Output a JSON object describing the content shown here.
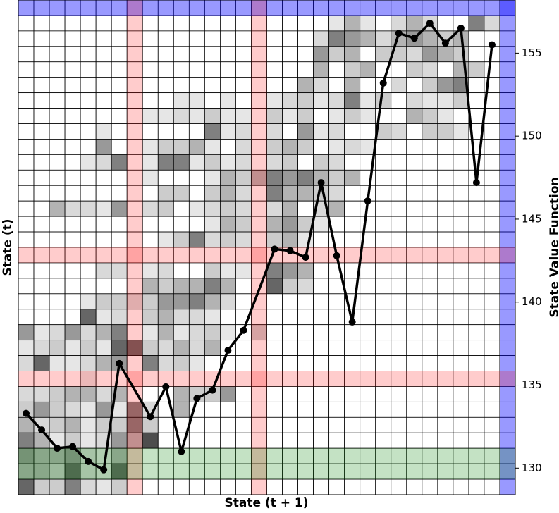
{
  "chart_data": {
    "type": "heatmap",
    "x_label": "State (t + 1)",
    "y_label": "State (t)",
    "y2_label": "State Value Function",
    "xlim": [
      -0.5,
      31.5
    ],
    "colorscale": [
      "#ffffff",
      "#000000"
    ],
    "zlim": [
      0,
      1
    ],
    "matrix": [
      [
        0,
        0,
        0,
        0,
        0,
        0,
        0,
        0,
        0,
        0,
        0,
        0,
        0,
        0,
        0,
        0,
        0,
        0,
        0,
        0,
        0,
        0,
        0,
        0,
        0,
        0,
        0,
        0,
        0,
        0,
        0,
        0
      ],
      [
        0,
        0,
        0,
        0,
        0,
        0,
        0,
        0,
        0,
        0,
        0,
        0,
        0,
        0,
        0,
        0,
        0,
        0,
        0,
        0,
        0.1,
        0.3,
        0.1,
        0,
        0.15,
        0.3,
        0.15,
        0,
        0,
        0.5,
        0.15,
        0
      ],
      [
        0,
        0,
        0,
        0,
        0,
        0,
        0,
        0,
        0,
        0,
        0,
        0,
        0,
        0,
        0,
        0,
        0,
        0,
        0,
        0.15,
        0.5,
        0.4,
        0.3,
        0.15,
        0.3,
        0.4,
        0.3,
        0.2,
        0.3,
        0,
        0,
        0
      ],
      [
        0,
        0,
        0,
        0,
        0,
        0,
        0,
        0,
        0,
        0,
        0,
        0,
        0,
        0,
        0,
        0,
        0,
        0,
        0,
        0.4,
        0.2,
        0.3,
        0,
        0.2,
        0.2,
        0.15,
        0.4,
        0.3,
        0.2,
        0,
        0,
        0
      ],
      [
        0,
        0,
        0,
        0,
        0,
        0,
        0,
        0,
        0,
        0,
        0,
        0,
        0,
        0,
        0,
        0,
        0,
        0,
        0,
        0.3,
        0,
        0.2,
        0.3,
        0,
        0,
        0.2,
        0.15,
        0,
        0.3,
        0.2,
        0,
        0
      ],
      [
        0,
        0,
        0,
        0,
        0,
        0,
        0,
        0,
        0,
        0,
        0,
        0,
        0,
        0,
        0,
        0,
        0,
        0,
        0.3,
        0.15,
        0,
        0.3,
        0,
        0,
        0.15,
        0,
        0.2,
        0.4,
        0.5,
        0,
        0,
        0
      ],
      [
        0,
        0,
        0,
        0,
        0,
        0,
        0,
        0,
        0,
        0,
        0.1,
        0.1,
        0,
        0.1,
        0,
        0,
        0.1,
        0.15,
        0.2,
        0.1,
        0.15,
        0.5,
        0.1,
        0.2,
        0,
        0.15,
        0.1,
        0.1,
        0.2,
        0,
        0,
        0
      ],
      [
        0,
        0,
        0,
        0,
        0,
        0,
        0,
        0,
        0.1,
        0.1,
        0.15,
        0.1,
        0.2,
        0.1,
        0.1,
        0,
        0.2,
        0.1,
        0.2,
        0,
        0.1,
        0.2,
        0.1,
        0,
        0,
        0.3,
        0.2,
        0.1,
        0,
        0,
        0,
        0
      ],
      [
        0,
        0,
        0,
        0,
        0,
        0.1,
        0,
        0,
        0,
        0,
        0,
        0,
        0.5,
        0.1,
        0.15,
        0,
        0.15,
        0,
        0.4,
        0.1,
        0.15,
        0,
        0,
        0.2,
        0.15,
        0,
        0.2,
        0.2,
        0.1,
        0,
        0,
        0
      ],
      [
        0,
        0,
        0,
        0,
        0,
        0.4,
        0,
        0,
        0.1,
        0.2,
        0.2,
        0.3,
        0.1,
        0,
        0.15,
        0,
        0.2,
        0.3,
        0.2,
        0,
        0.1,
        0.15,
        0.1,
        0,
        0,
        0,
        0,
        0,
        0,
        0,
        0,
        0
      ],
      [
        0,
        0,
        0,
        0,
        0.1,
        0.15,
        0.5,
        0,
        0.1,
        0.5,
        0.5,
        0.1,
        0.2,
        0.1,
        0.15,
        0,
        0.15,
        0.2,
        0,
        0.2,
        0.15,
        0,
        0,
        0,
        0,
        0,
        0,
        0,
        0,
        0,
        0,
        0
      ],
      [
        0,
        0,
        0,
        0,
        0,
        0,
        0,
        0,
        0.1,
        0,
        0,
        0,
        0.1,
        0.3,
        0.2,
        0.3,
        0.5,
        0.4,
        0.5,
        0.3,
        0.2,
        0.3,
        0,
        0,
        0,
        0,
        0,
        0,
        0,
        0,
        0,
        0
      ],
      [
        0,
        0,
        0,
        0,
        0,
        0,
        0,
        0,
        0,
        0.2,
        0.2,
        0,
        0.2,
        0.3,
        0.15,
        0,
        0.5,
        0.3,
        0.3,
        0.2,
        0.15,
        0,
        0,
        0,
        0,
        0,
        0,
        0,
        0,
        0,
        0,
        0
      ],
      [
        0,
        0,
        0.3,
        0.15,
        0.15,
        0.1,
        0.4,
        0,
        0.15,
        0.2,
        0,
        0.1,
        0.15,
        0.2,
        0.15,
        0,
        0.15,
        0.3,
        0,
        0.15,
        0.3,
        0,
        0,
        0,
        0,
        0,
        0,
        0,
        0,
        0,
        0,
        0
      ],
      [
        0,
        0,
        0,
        0,
        0,
        0,
        0,
        0,
        0,
        0,
        0,
        0,
        0.1,
        0.3,
        0.2,
        0,
        0.3,
        0.4,
        0.2,
        0.1,
        0,
        0,
        0,
        0,
        0,
        0,
        0,
        0,
        0,
        0,
        0,
        0
      ],
      [
        0,
        0,
        0,
        0,
        0,
        0,
        0,
        0,
        0,
        0.1,
        0.2,
        0.5,
        0.15,
        0.2,
        0.15,
        0,
        0.2,
        0.3,
        0.1,
        0,
        0,
        0,
        0,
        0,
        0,
        0,
        0,
        0,
        0,
        0,
        0,
        0
      ],
      [
        0,
        0,
        0,
        0,
        0,
        0,
        0,
        0,
        0,
        0,
        0,
        0,
        0,
        0,
        0,
        0,
        0,
        0,
        0,
        0,
        0,
        0,
        0,
        0,
        0,
        0,
        0,
        0,
        0,
        0,
        0,
        0
      ],
      [
        0,
        0,
        0,
        0,
        0,
        0.15,
        0.15,
        0,
        0.1,
        0.15,
        0,
        0,
        0.2,
        0.1,
        0.1,
        0,
        0.5,
        0.4,
        0.3,
        0,
        0,
        0,
        0,
        0,
        0,
        0,
        0,
        0,
        0,
        0,
        0,
        0
      ],
      [
        0,
        0,
        0,
        0,
        0,
        0,
        0,
        0,
        0.3,
        0.2,
        0.3,
        0.3,
        0.5,
        0.3,
        0,
        0,
        0.6,
        0.2,
        0.15,
        0,
        0,
        0,
        0,
        0,
        0,
        0,
        0,
        0,
        0,
        0,
        0,
        0
      ],
      [
        0,
        0,
        0,
        0,
        0.1,
        0.2,
        0.2,
        0.15,
        0.2,
        0.4,
        0.4,
        0.5,
        0.3,
        0.15,
        0,
        0,
        0,
        0,
        0,
        0,
        0,
        0,
        0,
        0,
        0,
        0,
        0,
        0,
        0,
        0,
        0,
        0
      ],
      [
        0,
        0,
        0,
        0,
        0.6,
        0.1,
        0.15,
        0,
        0.2,
        0.3,
        0.15,
        0.15,
        0.1,
        0,
        0,
        0,
        0,
        0,
        0,
        0,
        0,
        0,
        0,
        0,
        0,
        0,
        0,
        0,
        0,
        0,
        0,
        0
      ],
      [
        0.4,
        0.1,
        0.15,
        0.4,
        0.15,
        0.3,
        0.5,
        0,
        0.1,
        0.3,
        0.1,
        0.15,
        0.2,
        0.1,
        0,
        0.2,
        0,
        0,
        0,
        0,
        0,
        0,
        0,
        0,
        0,
        0,
        0,
        0,
        0,
        0,
        0,
        0
      ],
      [
        0.1,
        0.15,
        0.2,
        0.1,
        0.2,
        0.1,
        0.6,
        0.6,
        0.2,
        0.15,
        0.3,
        0.15,
        0.3,
        0,
        0,
        0,
        0,
        0,
        0,
        0,
        0,
        0,
        0,
        0,
        0,
        0,
        0,
        0,
        0,
        0,
        0,
        0
      ],
      [
        0.15,
        0.6,
        0.1,
        0.1,
        0.15,
        0.3,
        0.4,
        0,
        0.5,
        0.15,
        0.2,
        0.1,
        0,
        0,
        0,
        0,
        0,
        0,
        0,
        0,
        0,
        0,
        0,
        0,
        0,
        0,
        0,
        0,
        0,
        0,
        0,
        0
      ],
      [
        0,
        0,
        0,
        0,
        0.1,
        0,
        0,
        0,
        0,
        0,
        0,
        0,
        0,
        0,
        0,
        0,
        0,
        0,
        0,
        0,
        0,
        0,
        0,
        0,
        0,
        0,
        0,
        0,
        0,
        0,
        0,
        0
      ],
      [
        0.15,
        0.15,
        0.2,
        0.3,
        0.3,
        0.15,
        0.3,
        0,
        0,
        0,
        0.3,
        0.2,
        0.2,
        0.4,
        0,
        0,
        0,
        0,
        0,
        0,
        0,
        0,
        0,
        0,
        0,
        0,
        0,
        0,
        0,
        0,
        0,
        0
      ],
      [
        0.2,
        0.4,
        0.2,
        0.15,
        0.1,
        0.4,
        0.1,
        0.5,
        0.15,
        0,
        0.3,
        0,
        0,
        0,
        0,
        0,
        0,
        0,
        0,
        0,
        0,
        0,
        0,
        0,
        0,
        0,
        0,
        0,
        0,
        0,
        0,
        0
      ],
      [
        0.3,
        0.15,
        0.2,
        0.3,
        0.1,
        0.2,
        0.2,
        0.5,
        0.2,
        0,
        0,
        0,
        0,
        0,
        0,
        0,
        0,
        0,
        0,
        0,
        0,
        0,
        0,
        0,
        0,
        0,
        0,
        0,
        0,
        0,
        0,
        0
      ],
      [
        0.5,
        0.3,
        0.1,
        0.2,
        0.1,
        0.15,
        0.4,
        0.3,
        0.7,
        0,
        0,
        0,
        0,
        0,
        0,
        0,
        0,
        0,
        0,
        0,
        0,
        0,
        0,
        0,
        0,
        0,
        0,
        0,
        0,
        0,
        0,
        0
      ],
      [
        0.4,
        0.3,
        0.3,
        0.4,
        0.15,
        0.1,
        0.3,
        0,
        0,
        0,
        0,
        0,
        0,
        0,
        0,
        0,
        0,
        0,
        0,
        0,
        0,
        0,
        0,
        0,
        0,
        0,
        0,
        0,
        0,
        0,
        0,
        0
      ],
      [
        0.3,
        0.3,
        0.2,
        0.6,
        0.15,
        0.1,
        0.6,
        0,
        0,
        0,
        0,
        0,
        0,
        0,
        0,
        0,
        0,
        0,
        0,
        0,
        0,
        0,
        0,
        0,
        0,
        0,
        0,
        0,
        0,
        0,
        0,
        0
      ],
      [
        0.6,
        0.2,
        0.2,
        0.5,
        0.15,
        0.1,
        0.2,
        0,
        0,
        0,
        0,
        0,
        0,
        0,
        0,
        0,
        0,
        0,
        0,
        0,
        0,
        0,
        0,
        0,
        0,
        0,
        0,
        0,
        0,
        0,
        0,
        0
      ]
    ],
    "highlights": [
      {
        "orient": "row",
        "index": 0,
        "color": "rgba(0,0,255,0.4)"
      },
      {
        "orient": "col",
        "index": 31,
        "color": "rgba(0,0,255,0.4)"
      },
      {
        "orient": "row",
        "index": 16,
        "color": "rgba(255,0,0,0.2)"
      },
      {
        "orient": "row",
        "index": 24,
        "color": "rgba(255,0,0,0.2)"
      },
      {
        "orient": "col",
        "index": 7,
        "color": "rgba(255,0,0,0.2)"
      },
      {
        "orient": "col",
        "index": 15,
        "color": "rgba(255,0,0,0.2)"
      },
      {
        "orient": "row",
        "index": 29,
        "color": "rgba(0,128,0,0.23)"
      },
      {
        "orient": "row",
        "index": 30,
        "color": "rgba(0,128,0,0.23)"
      }
    ],
    "y2lim": [
      128.4,
      158.2
    ],
    "y2ticks": [
      130,
      135,
      140,
      145,
      150,
      155
    ],
    "series": [
      {
        "type": "line",
        "axis": "y2",
        "color": "#000000",
        "x": [
          0,
          1,
          2,
          3,
          4,
          5,
          6,
          8,
          9,
          10,
          11,
          12,
          13,
          14,
          16,
          17,
          18,
          19,
          20,
          21,
          22,
          23,
          24,
          25,
          26,
          27,
          28,
          29,
          30
        ],
        "values": [
          133.3,
          132.3,
          131.2,
          131.3,
          130.4,
          129.9,
          136.3,
          133.1,
          134.9,
          131.0,
          134.2,
          134.7,
          137.1,
          138.3,
          143.2,
          143.1,
          142.7,
          147.2,
          142.8,
          138.8,
          146.1,
          153.2,
          156.2,
          155.9,
          156.8,
          155.6,
          156.5,
          147.2,
          155.5
        ]
      }
    ]
  }
}
